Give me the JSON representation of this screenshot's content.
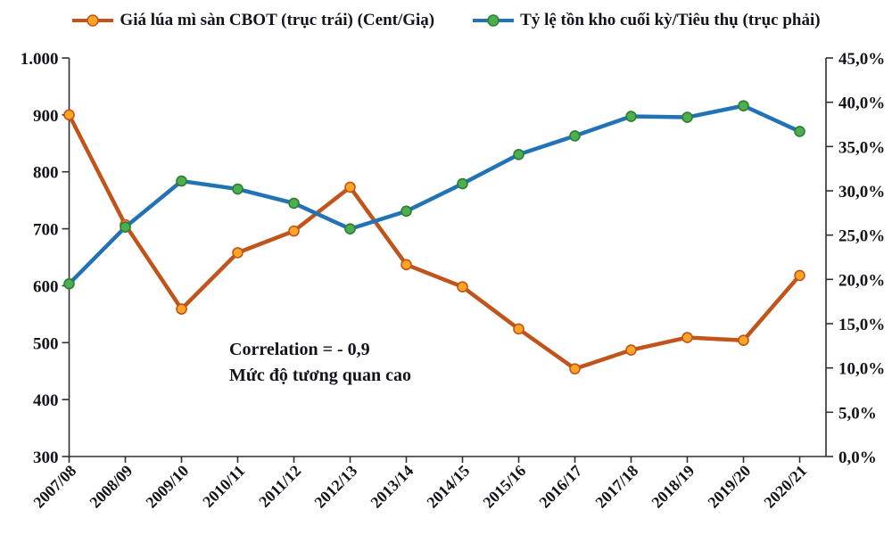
{
  "legend": {
    "items": [
      {
        "label": "Giá lúa mì sàn CBOT (trục trái) (Cent/Giạ)",
        "line_color": "#C0541B",
        "marker_fill": "#FFA423",
        "marker_stroke": "#C0541B"
      },
      {
        "label": "Tỷ lệ tồn kho cuối kỳ/Tiêu thụ (trục phải)",
        "line_color": "#2272B6",
        "marker_fill": "#4BAE4F",
        "marker_stroke": "#2F7D33"
      }
    ]
  },
  "annotation": {
    "line1": "Correlation  = - 0,9",
    "line2": "Mức độ tương quan cao"
  },
  "chart_data": {
    "type": "line",
    "title": "",
    "grid": false,
    "legend_position": "top",
    "categories": [
      "2007/08",
      "2008/09",
      "2009/10",
      "2010/11",
      "2011/12",
      "2012/13",
      "2013/14",
      "2014/15",
      "2015/16",
      "2016/17",
      "2017/18",
      "2018/19",
      "2019/20",
      "2020/21"
    ],
    "series": [
      {
        "name": "Giá lúa mì sàn CBOT (trục trái) (Cent/Giạ)",
        "axis": "left",
        "unit": "Cent/Giạ",
        "color": "#C0541B",
        "marker_fill": "#FFA423",
        "marker_stroke": "#C0541B",
        "values": [
          900,
          707,
          559,
          658,
          696,
          773,
          637,
          598,
          524,
          454,
          487,
          509,
          504,
          618
        ]
      },
      {
        "name": "Tỷ lệ tồn kho cuối kỳ/Tiêu thụ (trục phải)",
        "axis": "right",
        "unit": "%",
        "color": "#2272B6",
        "marker_fill": "#4BAE4F",
        "marker_stroke": "#2F7D33",
        "values": [
          19.5,
          25.9,
          31.1,
          30.2,
          28.6,
          25.7,
          27.7,
          30.8,
          34.1,
          36.2,
          38.4,
          38.3,
          39.6,
          36.7
        ]
      }
    ],
    "left_axis": {
      "min": 300,
      "max": 1000,
      "step": 100,
      "labels": [
        "1.000",
        "900",
        "800",
        "700",
        "600",
        "500",
        "400",
        "300"
      ]
    },
    "right_axis": {
      "min": 0,
      "max": 45,
      "step": 5,
      "labels": [
        "45,0%",
        "40,0%",
        "35,0%",
        "30,0%",
        "25,0%",
        "20,0%",
        "15,0%",
        "10,0%",
        "5,0%",
        "0,0%"
      ]
    }
  }
}
